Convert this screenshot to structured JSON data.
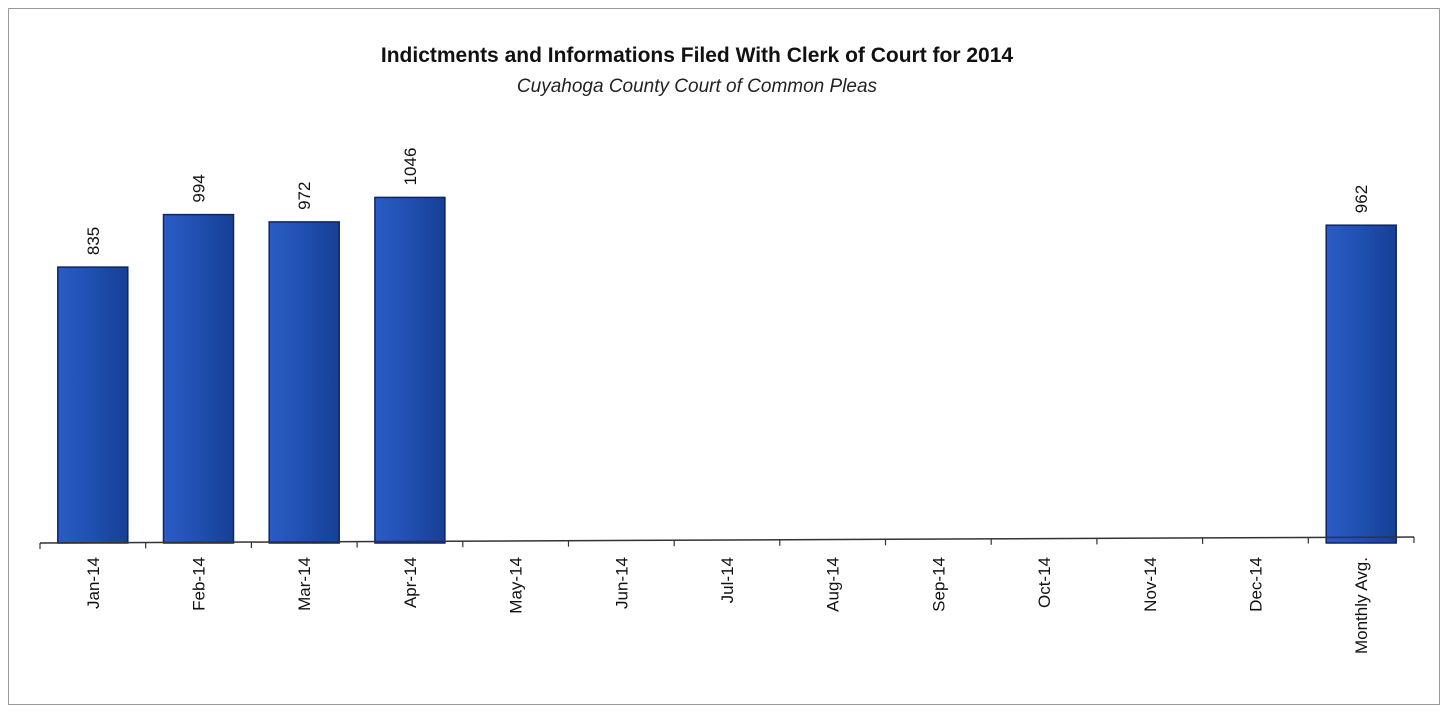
{
  "chart_data": {
    "type": "bar",
    "title": "Indictments and Informations Filed With Clerk of Court for 2014",
    "subtitle": "Cuyahoga County Court of Common Pleas",
    "categories": [
      "Jan-14",
      "Feb-14",
      "Mar-14",
      "Apr-14",
      "May-14",
      "Jun-14",
      "Jul-14",
      "Aug-14",
      "Sep-14",
      "Oct-14",
      "Nov-14",
      "Dec-14",
      "Monthly Avg."
    ],
    "values": [
      835,
      994,
      972,
      1046,
      null,
      null,
      null,
      null,
      null,
      null,
      null,
      null,
      962
    ],
    "data_labels": [
      "835",
      "994",
      "972",
      "1046",
      "",
      "",
      "",
      "",
      "",
      "",
      "",
      "",
      "962"
    ],
    "ylim": [
      0,
      1150
    ],
    "grid": false,
    "legend": "none",
    "bar_color": "#1f4fb0",
    "bar_edge_color": "#0c2566"
  }
}
